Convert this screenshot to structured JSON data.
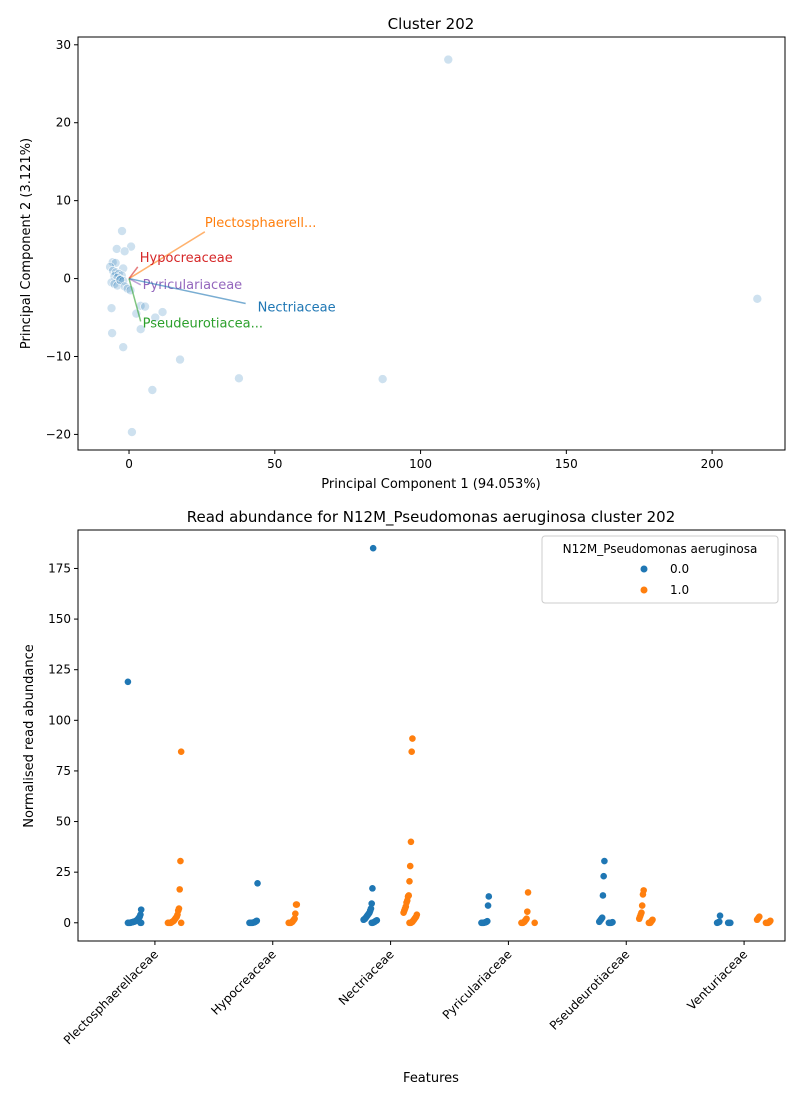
{
  "chart_data": [
    {
      "type": "scatter",
      "title": "Cluster 202",
      "xlabel": "Principal Component 1 (94.053%)",
      "ylabel": "Principal Component 2 (3.121%)",
      "xlim": [
        -17.5,
        225
      ],
      "ylim": [
        -22,
        31
      ],
      "xticks": [
        0,
        50,
        100,
        150,
        200
      ],
      "yticks": [
        -20,
        -10,
        0,
        10,
        20,
        30
      ],
      "point_color": "#1f77b4",
      "points": [
        [
          109.5,
          28.1
        ],
        [
          215.5,
          -2.6
        ],
        [
          -2.4,
          6.1
        ],
        [
          -4.2,
          3.8
        ],
        [
          0.7,
          4.1
        ],
        [
          -1.5,
          3.5
        ],
        [
          -5.6,
          2.1
        ],
        [
          -4.6,
          2.0
        ],
        [
          -2.0,
          1.3
        ],
        [
          -6.5,
          1.5
        ],
        [
          -5.5,
          1.0
        ],
        [
          -4.5,
          0.8
        ],
        [
          -3.5,
          0.6
        ],
        [
          -2.5,
          0.4
        ],
        [
          -5.0,
          0.3
        ],
        [
          -4.0,
          0.1
        ],
        [
          -3.0,
          -0.1
        ],
        [
          -2.0,
          -0.3
        ],
        [
          -6.0,
          -0.5
        ],
        [
          -5.0,
          -0.7
        ],
        [
          -4.0,
          -0.9
        ],
        [
          -3.0,
          -0.2
        ],
        [
          -1.5,
          -1.0
        ],
        [
          -0.5,
          -1.3
        ],
        [
          0.5,
          -1.5
        ],
        [
          -6.0,
          -3.8
        ],
        [
          2.5,
          -4.5
        ],
        [
          4.0,
          -3.5
        ],
        [
          5.5,
          -3.6
        ],
        [
          11.5,
          -4.3
        ],
        [
          9.0,
          -5.0
        ],
        [
          -5.8,
          -7.0
        ],
        [
          4.0,
          -6.5
        ],
        [
          -2.0,
          -8.8
        ],
        [
          17.5,
          -10.4
        ],
        [
          37.7,
          -12.8
        ],
        [
          87.0,
          -12.9
        ],
        [
          8.0,
          -14.3
        ],
        [
          1.0,
          -19.7
        ]
      ],
      "loadings": [
        {
          "name": "Plectosphaerell...",
          "x": 26.0,
          "y": 6.0,
          "color": "#ff7f0e"
        },
        {
          "name": "Hypocreaceae",
          "x": 3.0,
          "y": 1.5,
          "color": "#d62728"
        },
        {
          "name": "Pyriculariaceae",
          "x": 4.0,
          "y": -0.8,
          "color": "#9467bd"
        },
        {
          "name": "Nectriaceae",
          "x": 40.0,
          "y": -3.2,
          "color": "#1f77b4"
        },
        {
          "name": "Pseudeurotiacea...",
          "x": 4.0,
          "y": -5.5,
          "color": "#2ca02c"
        }
      ]
    },
    {
      "type": "scatter",
      "title": "Read abundance for N12M_Pseudomonas aeruginosa cluster 202",
      "xlabel": "Features",
      "ylabel": "Normalised read abundance",
      "ylim": [
        -9,
        194
      ],
      "yticks": [
        0,
        25,
        50,
        75,
        100,
        125,
        150,
        175
      ],
      "categories": [
        "Plectosphaerellaceae",
        "Hypocreaceae",
        "Nectriaceae",
        "Pyriculariaceae",
        "Pseudeurotiaceae",
        "Venturiaceae"
      ],
      "legend": {
        "title": "N12M_Pseudomonas aeruginosa",
        "position": "top-right",
        "entries": [
          {
            "label": "0.0",
            "color": "#1f77b4"
          },
          {
            "label": "1.0",
            "color": "#ff7f0e"
          }
        ]
      },
      "series": [
        {
          "name": "0.0",
          "color": "#1f77b4",
          "values": [
            [
              119,
              6.5,
              4,
              3,
              2.5,
              2,
              1.5,
              1.2,
              1,
              0.8,
              0.6,
              0.5,
              0.4,
              0.3,
              0.2,
              0.1,
              0,
              0,
              0,
              0,
              0,
              0
            ],
            [
              19.5,
              1,
              0.8,
              0.5,
              0.3,
              0.2,
              0.1,
              0,
              0,
              0,
              0,
              0
            ],
            [
              185,
              17,
              9.5,
              7,
              6,
              5,
              4.5,
              4,
              3.5,
              3,
              2.5,
              2,
              1.8,
              1.5,
              1.2,
              1,
              0.8,
              0.5,
              0.3,
              0.1,
              0,
              0
            ],
            [
              13,
              8.5,
              0.8,
              0.5,
              0.3,
              0.2,
              0.1,
              0,
              0,
              0,
              0
            ],
            [
              30.5,
              23,
              13.5,
              2.5,
              2,
              1.5,
              1,
              0.5,
              0.3,
              0.1,
              0,
              0,
              0,
              0
            ],
            [
              3.5,
              0.5,
              0.3,
              0.1,
              0,
              0,
              0,
              0,
              0
            ]
          ]
        },
        {
          "name": "1.0",
          "color": "#ff7f0e",
          "values": [
            [
              84.5,
              30.5,
              16.5,
              7,
              6,
              4,
              3,
              2.5,
              2,
              1.5,
              1,
              0.8,
              0.5,
              0.3,
              0,
              0,
              0,
              0,
              0,
              0
            ],
            [
              9,
              9,
              4.5,
              2,
              1.5,
              1,
              0.5,
              0.3,
              0,
              0,
              0,
              0
            ],
            [
              91,
              84.5,
              40,
              28,
              20.5,
              13.5,
              13,
              11,
              10,
              8,
              7,
              6,
              5,
              4,
              3,
              2.5,
              2,
              1.5,
              1,
              0.5,
              0.3,
              0,
              0,
              0
            ],
            [
              15,
              5.5,
              2,
              1.5,
              1,
              0.5,
              0.3,
              0,
              0,
              0,
              0
            ],
            [
              16,
              14,
              8.5,
              5,
              4,
              3,
              2,
              1.5,
              1,
              0.5,
              0,
              0,
              0
            ],
            [
              3,
              2.5,
              2,
              1.5,
              1,
              0.5,
              0.3,
              0,
              0,
              0,
              0
            ]
          ]
        }
      ]
    }
  ]
}
